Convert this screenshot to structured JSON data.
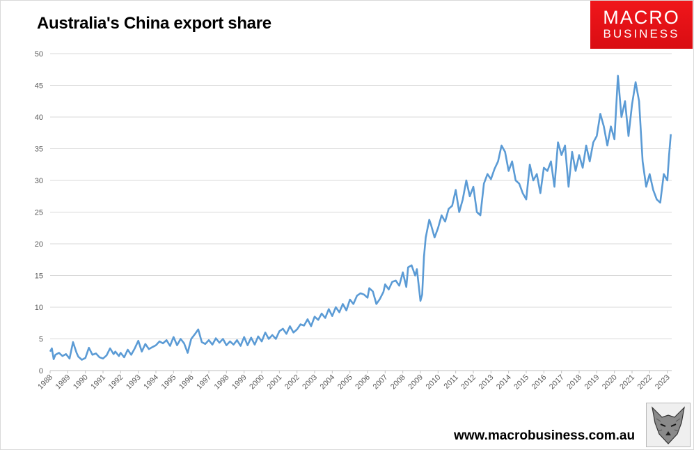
{
  "logo": {
    "line1": "MACRO",
    "line2": "BUSINESS"
  },
  "website": "www.macrobusiness.com.au",
  "colors": {
    "series": "#5b9bd5",
    "grid": "#d9d9d9",
    "logo_red": "#e8121a"
  },
  "icons": {
    "mascot": "wolf-icon"
  },
  "chart_data": {
    "type": "line",
    "title": "Australia's China export share",
    "xlabel": "",
    "ylabel": "",
    "ylim": [
      0,
      50
    ],
    "yticks": [
      0,
      5,
      10,
      15,
      20,
      25,
      30,
      35,
      40,
      45,
      50
    ],
    "xlim": [
      1988.0,
      2023.25
    ],
    "xticks": [
      "1988",
      "1989",
      "1990",
      "1991",
      "1992",
      "1993",
      "1994",
      "1995",
      "1996",
      "1997",
      "1998",
      "1999",
      "2000",
      "2001",
      "2002",
      "2003",
      "2004",
      "2005",
      "2006",
      "2007",
      "2008",
      "2009",
      "2010",
      "2011",
      "2012",
      "2013",
      "2014",
      "2015",
      "2016",
      "2017",
      "2018",
      "2019",
      "2020",
      "2021",
      "2022",
      "2023"
    ],
    "grid": true,
    "legend": "none",
    "series": [
      {
        "x": [
          1988.0,
          1988.1,
          1988.2,
          1988.3,
          1988.5,
          1988.7,
          1988.9,
          1989.1,
          1989.3,
          1989.5,
          1989.6,
          1989.8,
          1990.0,
          1990.2,
          1990.4,
          1990.6,
          1990.8,
          1991.0,
          1991.2,
          1991.4,
          1991.6,
          1991.7,
          1991.9,
          1992.0,
          1992.2,
          1992.4,
          1992.6,
          1992.8,
          1993.0,
          1993.2,
          1993.4,
          1993.6,
          1993.8,
          1994.0,
          1994.2,
          1994.4,
          1994.6,
          1994.8,
          1995.0,
          1995.2,
          1995.4,
          1995.6,
          1995.8,
          1996.0,
          1996.2,
          1996.4,
          1996.6,
          1996.8,
          1997.0,
          1997.2,
          1997.4,
          1997.6,
          1997.8,
          1998.0,
          1998.2,
          1998.4,
          1998.6,
          1998.8,
          1999.0,
          1999.2,
          1999.4,
          1999.6,
          1999.8,
          2000.0,
          2000.2,
          2000.4,
          2000.6,
          2000.8,
          2001.0,
          2001.2,
          2001.4,
          2001.6,
          2001.8,
          2002.0,
          2002.2,
          2002.4,
          2002.6,
          2002.8,
          2003.0,
          2003.2,
          2003.4,
          2003.6,
          2003.8,
          2004.0,
          2004.2,
          2004.4,
          2004.6,
          2004.8,
          2005.0,
          2005.2,
          2005.4,
          2005.6,
          2005.8,
          2006.0,
          2006.1,
          2006.3,
          2006.5,
          2006.7,
          2006.9,
          2007.0,
          2007.2,
          2007.4,
          2007.6,
          2007.8,
          2008.0,
          2008.2,
          2008.3,
          2008.5,
          2008.7,
          2008.8,
          2009.0,
          2009.1,
          2009.2,
          2009.3,
          2009.5,
          2009.6,
          2009.8,
          2010.0,
          2010.2,
          2010.4,
          2010.6,
          2010.8,
          2011.0,
          2011.2,
          2011.4,
          2011.6,
          2011.8,
          2012.0,
          2012.2,
          2012.4,
          2012.6,
          2012.8,
          2013.0,
          2013.2,
          2013.4,
          2013.6,
          2013.8,
          2014.0,
          2014.2,
          2014.4,
          2014.6,
          2014.8,
          2015.0,
          2015.2,
          2015.4,
          2015.6,
          2015.8,
          2016.0,
          2016.2,
          2016.4,
          2016.6,
          2016.8,
          2017.0,
          2017.2,
          2017.4,
          2017.6,
          2017.8,
          2018.0,
          2018.2,
          2018.4,
          2018.6,
          2018.8,
          2019.0,
          2019.2,
          2019.4,
          2019.6,
          2019.8,
          2020.0,
          2020.2,
          2020.4,
          2020.6,
          2020.8,
          2021.0,
          2021.2,
          2021.4,
          2021.6,
          2021.8,
          2022.0,
          2022.2,
          2022.4,
          2022.6,
          2022.8,
          2023.0,
          2023.1,
          2023.2
        ],
        "values": [
          3.0,
          3.5,
          1.8,
          2.5,
          2.8,
          2.3,
          2.6,
          1.9,
          4.5,
          2.8,
          2.2,
          1.7,
          2.0,
          3.6,
          2.5,
          2.7,
          2.1,
          1.9,
          2.4,
          3.5,
          2.6,
          3.0,
          2.3,
          2.8,
          2.1,
          3.3,
          2.5,
          3.5,
          4.7,
          3.0,
          4.2,
          3.4,
          3.7,
          4.0,
          4.6,
          4.3,
          4.8,
          3.9,
          5.3,
          4.0,
          5.0,
          4.3,
          2.8,
          5.0,
          5.7,
          6.5,
          4.5,
          4.2,
          4.8,
          4.1,
          5.1,
          4.4,
          5.0,
          4.0,
          4.6,
          4.1,
          4.8,
          3.9,
          5.3,
          4.0,
          5.2,
          4.1,
          5.4,
          4.6,
          6.0,
          5.0,
          5.6,
          5.0,
          6.2,
          6.6,
          5.8,
          7.0,
          6.0,
          6.5,
          7.3,
          7.1,
          8.1,
          7.0,
          8.5,
          8.0,
          9.0,
          8.3,
          9.7,
          8.6,
          10.0,
          9.2,
          10.5,
          9.5,
          11.2,
          10.5,
          11.8,
          12.2,
          12.0,
          11.5,
          13.0,
          12.5,
          10.5,
          11.3,
          12.4,
          13.6,
          12.8,
          14.0,
          14.2,
          13.4,
          15.5,
          13.2,
          16.3,
          16.6,
          15.0,
          16.0,
          11.0,
          12.0,
          18.0,
          21.0,
          23.8,
          23.0,
          21.0,
          22.5,
          24.5,
          23.5,
          25.5,
          26.0,
          28.5,
          25.0,
          27.0,
          30.0,
          27.5,
          29.0,
          25.0,
          24.5,
          29.5,
          31.0,
          30.2,
          31.8,
          33.0,
          35.5,
          34.5,
          31.5,
          33.0,
          30.0,
          29.5,
          28.0,
          27.0,
          32.5,
          30.0,
          31.0,
          28.0,
          32.0,
          31.5,
          33.0,
          29.0,
          36.0,
          34.0,
          35.5,
          29.0,
          34.5,
          31.5,
          34.0,
          32.0,
          35.5,
          33.0,
          36.0,
          37.0,
          40.5,
          38.5,
          35.5,
          38.5,
          36.5,
          46.5,
          40.0,
          42.5,
          37.0,
          42.0,
          45.5,
          42.5,
          33.0,
          29.0,
          31.0,
          28.5,
          27.0,
          26.5,
          31.0,
          30.0,
          34.0,
          37.3
        ]
      }
    ]
  }
}
